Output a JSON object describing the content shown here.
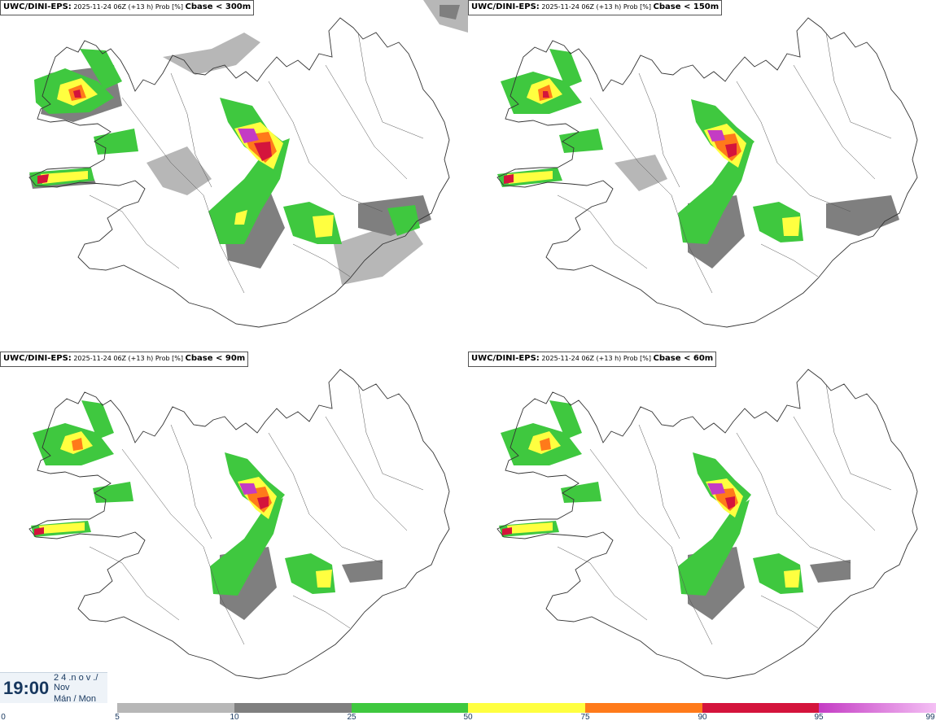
{
  "panels": [
    {
      "model": "UWC/DINI-EPS:",
      "meta": "2025-11-24 06Z (+13 h) Prob [%]",
      "threshold": "Cbase < 300m"
    },
    {
      "model": "UWC/DINI-EPS:",
      "meta": "2025-11-24 06Z (+13 h) Prob [%]",
      "threshold": "Cbase < 150m"
    },
    {
      "model": "UWC/DINI-EPS:",
      "meta": "2025-11-24 06Z (+13 h) Prob [%]",
      "threshold": "Cbase < 90m"
    },
    {
      "model": "UWC/DINI-EPS:",
      "meta": "2025-11-24 06Z (+13 h) Prob [%]",
      "threshold": "Cbase < 60m"
    }
  ],
  "valid_time": {
    "time": "19:00",
    "line1": "2 4 .n o v ./",
    "line2": "Nov",
    "line3": "Mán / Mon"
  },
  "legend": {
    "ticks": [
      "0",
      "5",
      "10",
      "25",
      "50",
      "75",
      "90",
      "95",
      "99"
    ],
    "colors": [
      "#ffffff",
      "#b7b7b7",
      "#7f7f7f",
      "#3fc83f",
      "#ffff40",
      "#ff7a1a",
      "#d4143c",
      "#c43cc4",
      "#f0a0f0"
    ]
  },
  "icons": {
    "map": "iceland-outline-map"
  }
}
